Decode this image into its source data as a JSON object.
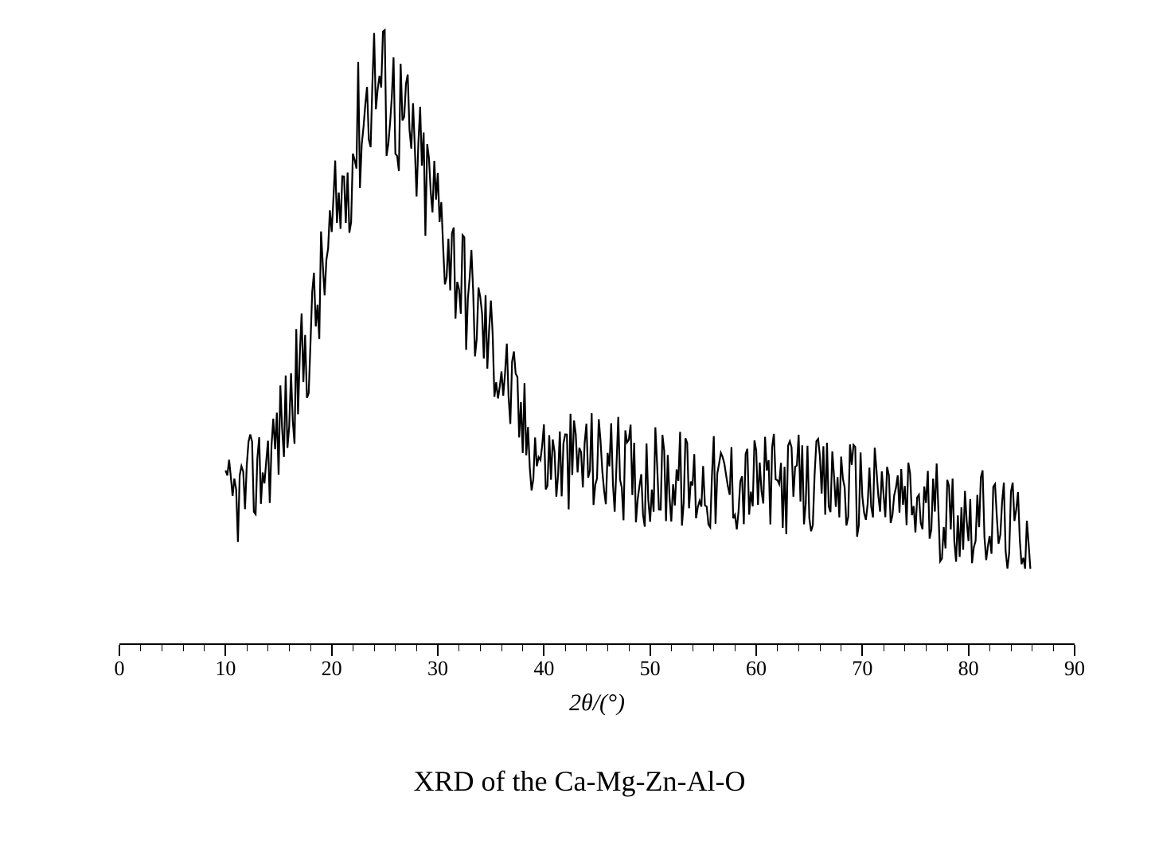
{
  "chart": {
    "type": "xrd-pattern",
    "title": "XRD of the Ca-Mg-Zn-Al-O",
    "x_axis_label": "2θ/(°)",
    "xlim": [
      0,
      90
    ],
    "x_major_ticks": [
      0,
      10,
      20,
      30,
      40,
      50,
      60,
      70,
      80,
      90
    ],
    "x_minor_step": 2,
    "ylim": [
      0,
      100
    ],
    "data_x_start": 10,
    "data_x_end": 86,
    "background_color": "#ffffff",
    "line_color": "#000000",
    "line_width": 2.2,
    "axis_color": "#000000",
    "tick_label_fontsize": 26,
    "axis_label_fontsize": 30,
    "caption_fontsize": 36,
    "envelope_points": [
      [
        10,
        22
      ],
      [
        12,
        25
      ],
      [
        14,
        30
      ],
      [
        16,
        38
      ],
      [
        18,
        50
      ],
      [
        20,
        65
      ],
      [
        22,
        80
      ],
      [
        24,
        92
      ],
      [
        26,
        88
      ],
      [
        28,
        78
      ],
      [
        30,
        70
      ],
      [
        32,
        60
      ],
      [
        34,
        52
      ],
      [
        36,
        45
      ],
      [
        38,
        35
      ],
      [
        40,
        30
      ],
      [
        42,
        29
      ],
      [
        44,
        30
      ],
      [
        46,
        29
      ],
      [
        48,
        28
      ],
      [
        50,
        27
      ],
      [
        52,
        27
      ],
      [
        54,
        26
      ],
      [
        56,
        26
      ],
      [
        58,
        26
      ],
      [
        60,
        26
      ],
      [
        62,
        26
      ],
      [
        64,
        26
      ],
      [
        66,
        25
      ],
      [
        68,
        26
      ],
      [
        70,
        25
      ],
      [
        72,
        24
      ],
      [
        74,
        23
      ],
      [
        76,
        22
      ],
      [
        78,
        21
      ],
      [
        80,
        21
      ],
      [
        82,
        20
      ],
      [
        84,
        19
      ],
      [
        86,
        19
      ]
    ],
    "noise_amplitude": 13,
    "noise_density": 6
  }
}
